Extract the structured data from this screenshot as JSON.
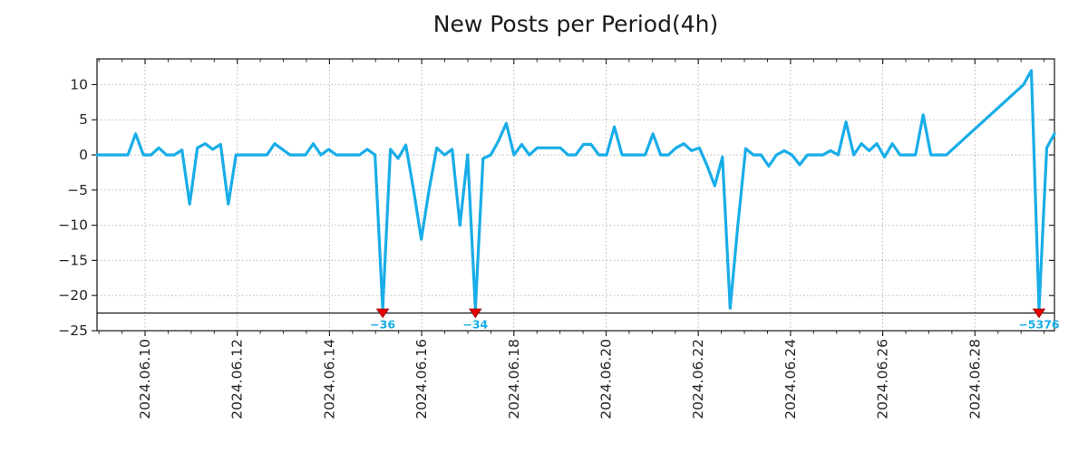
{
  "title": "New Posts per Period(4h)",
  "chart_data": {
    "type": "line",
    "title": "New Posts per Period(4h)",
    "period_hours": 4,
    "x_tick_labels": [
      "2024.06.10",
      "2024.06.12",
      "2024.06.14",
      "2024.06.16",
      "2024.06.18",
      "2024.06.20",
      "2024.06.22",
      "2024.06.24",
      "2024.06.26",
      "2024.06.28"
    ],
    "y_ticks": [
      10,
      5,
      0,
      -5,
      -10,
      -15,
      -20,
      -25
    ],
    "y_tick_labels": [
      "10",
      "5",
      "0",
      "−5",
      "−10",
      "−15",
      "−20",
      "−25"
    ],
    "ylim": [
      -25,
      13.7
    ],
    "grid": true,
    "legend": "none",
    "clip_line_value": -22.5,
    "series": [
      {
        "name": "new-posts",
        "values": [
          0,
          0,
          0,
          0,
          0,
          3,
          0,
          0,
          1,
          0,
          0,
          0.7,
          -7,
          1,
          1.6,
          0.8,
          1.5,
          -7,
          0,
          0,
          0,
          0,
          0,
          1.6,
          0.8,
          0,
          0,
          0,
          1.6,
          0,
          0.8,
          0,
          0,
          0,
          0,
          0.8,
          0,
          -36,
          0.8,
          -0.5,
          1.4,
          -5,
          -12,
          -5,
          1,
          0,
          0.8,
          -10,
          0,
          -34,
          -0.5,
          0,
          2,
          4.5,
          0,
          1.5,
          0,
          1,
          1,
          1,
          1,
          0,
          0,
          1.5,
          1.5,
          0,
          0,
          4,
          0,
          0,
          0,
          0,
          3,
          0,
          0,
          1,
          1.6,
          0.6,
          1,
          -1.5,
          -4.4,
          -0.3,
          -21.8,
          -10,
          0.9,
          0,
          0,
          -1.6,
          0,
          0.6,
          0,
          -1.4,
          0,
          0,
          0,
          0.6,
          0,
          4.7,
          0,
          1.6,
          0.6,
          1.6,
          -0.3,
          1.6,
          0,
          0,
          0,
          5.7,
          0,
          0,
          0,
          1,
          2,
          3,
          4,
          5,
          6,
          7,
          8,
          9,
          10,
          12,
          -5376,
          1,
          3
        ]
      }
    ],
    "annotations": [
      {
        "index": 37,
        "label": "−36",
        "value": -36
      },
      {
        "index": 49,
        "label": "−34",
        "value": -34
      },
      {
        "index": 122,
        "label": "−5376",
        "value": -5376
      }
    ],
    "colors": {
      "line": "#18ade8",
      "annotation_text": "#18ade8",
      "marker_fill": "#e60000",
      "marker_edge": "#8f0000",
      "grid": "#b5b5b5",
      "frame": "#262626",
      "clip_line": "#111111",
      "tick_text": "#262626",
      "background": "#ffffff"
    }
  }
}
